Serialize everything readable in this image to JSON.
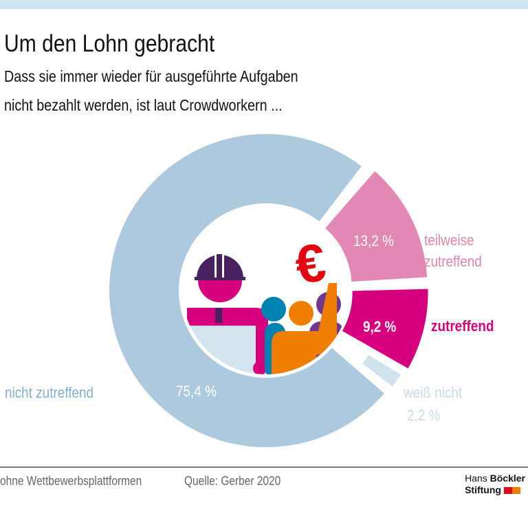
{
  "header": {
    "title": "Um den Lohn gebracht",
    "subtitle_line1": "Dass sie immer wieder für ausgeführte Aufgaben",
    "subtitle_line2": "nicht bezahlt werden, ist laut Crowdworkern ..."
  },
  "chart_data": {
    "type": "pie",
    "donut": true,
    "slices": [
      {
        "label": "teilweise zutreffend",
        "label_line1": "teilweise",
        "label_line2": "zutreffend",
        "value": 13.2,
        "value_label": "13,2 %",
        "color": "#e387b4"
      },
      {
        "label": "zutreffend",
        "value": 9.2,
        "value_label": "9,2 %",
        "color": "#d6007e"
      },
      {
        "label": "weiß nicht",
        "value": 2.2,
        "value_label": "2,2 %",
        "color": "#cfe2ee"
      },
      {
        "label": "nicht zutreffend",
        "value": 75.4,
        "value_label": "75,4 %",
        "color": "#adc9de"
      }
    ],
    "center_icon": "crowdworkers-euro-illustration"
  },
  "colors": {
    "label_teilweise": "#e084b0",
    "label_zutreffend": "#d6007e",
    "label_weiss": "#c6dbe9",
    "label_nicht": "#7fb0cf",
    "euro": "#e30613"
  },
  "footer": {
    "note": "ohne Wettbewerbsplattformen",
    "source": "Quelle: Gerber 2020",
    "logo_line1a": "Hans",
    "logo_line1b": "Böckler",
    "logo_line2": "Stiftung"
  }
}
